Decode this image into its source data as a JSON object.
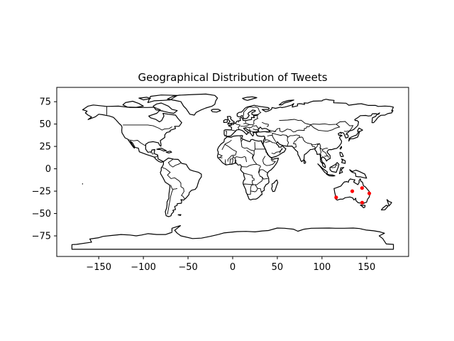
{
  "chart_data": {
    "type": "scatter",
    "title": "Geographical Distribution of Tweets",
    "xlabel": "",
    "ylabel": "",
    "xlim": [
      -197,
      197
    ],
    "ylim": [
      -98,
      91
    ],
    "x_ticks": [
      -150,
      -100,
      -50,
      0,
      50,
      100,
      150
    ],
    "y_ticks": [
      -75,
      -50,
      -25,
      0,
      25,
      50,
      75
    ],
    "x_tick_labels": [
      "−150",
      "−100",
      "−50",
      "0",
      "50",
      "100",
      "150"
    ],
    "y_tick_labels": [
      "−75",
      "−50",
      "−25",
      "0",
      "25",
      "50",
      "75"
    ],
    "grid": false,
    "marker_color": "#ff0000",
    "basemap": "world country outlines",
    "series": [
      {
        "points": [
          {
            "x": 115.9,
            "y": -32.0
          },
          {
            "x": 133.9,
            "y": -25.0
          },
          {
            "x": 144.9,
            "y": -21.5
          },
          {
            "x": 153.0,
            "y": -27.5
          },
          {
            "x": 145.0,
            "y": -37.8
          }
        ]
      }
    ]
  }
}
